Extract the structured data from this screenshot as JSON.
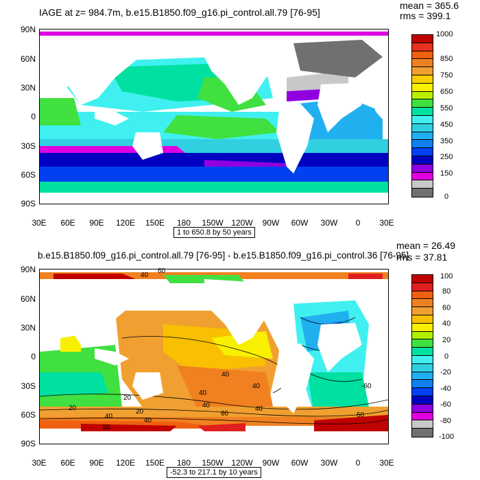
{
  "panel1": {
    "title": "IAGE at z= 984.7m, b.e15.B1850.f09_g16.pi_control.all.79 [76-95]",
    "mean": "mean = 365.6",
    "rms": "rms = 399.1",
    "info": "1 to 650.8 by 50 years",
    "colorbar_labels": [
      "1000",
      "850",
      "750",
      "650",
      "550",
      "450",
      "350",
      "250",
      "150",
      "0"
    ],
    "colors": [
      "#c00000",
      "#e83020",
      "#f06010",
      "#f08020",
      "#f0a030",
      "#f8d000",
      "#f8f000",
      "#b8f000",
      "#40e040",
      "#00e0a0",
      "#40f0f0",
      "#30d0e0",
      "#20b0f0",
      "#1080f0",
      "#0040f0",
      "#0000c0",
      "#9000e0",
      "#e000e0",
      "#c8c8c8",
      "#707070"
    ]
  },
  "panel2": {
    "title": "b.e15.B1850.f09_g16.pi_control.all.79 [76-95] - b.e15.B1850.f09_g16.pi_control.36 [76-95]",
    "mean": "mean = 26.49",
    "rms": "rms = 37.81",
    "info": "-52.3 to 217.1 by 10 years",
    "colorbar_labels": [
      "100",
      "80",
      "60",
      "40",
      "20",
      "0",
      "-20",
      "-40",
      "-60",
      "-80",
      "-100"
    ],
    "colors": [
      "#c00000",
      "#e02020",
      "#f06010",
      "#f08020",
      "#f0a030",
      "#f8c000",
      "#f8f000",
      "#b0f000",
      "#40e040",
      "#00e0a0",
      "#40f0f0",
      "#30d0e0",
      "#20b0f0",
      "#1080f0",
      "#0040f0",
      "#0000c0",
      "#9000e0",
      "#e000e0",
      "#c8c8c8",
      "#707070"
    ],
    "contour_labels": [
      "40",
      "60",
      "40",
      "40",
      "40",
      "20",
      "20",
      "20",
      "40",
      "40",
      "40",
      "40",
      "60",
      "80",
      "60",
      "-60"
    ]
  },
  "lat_labels": [
    "90N",
    "60N",
    "30N",
    "0",
    "30S",
    "60S",
    "90S"
  ],
  "lon_labels": [
    "30E",
    "60E",
    "90E",
    "120E",
    "150E",
    "180",
    "150W",
    "120W",
    "90W",
    "60W",
    "30W",
    "0",
    "30E"
  ]
}
